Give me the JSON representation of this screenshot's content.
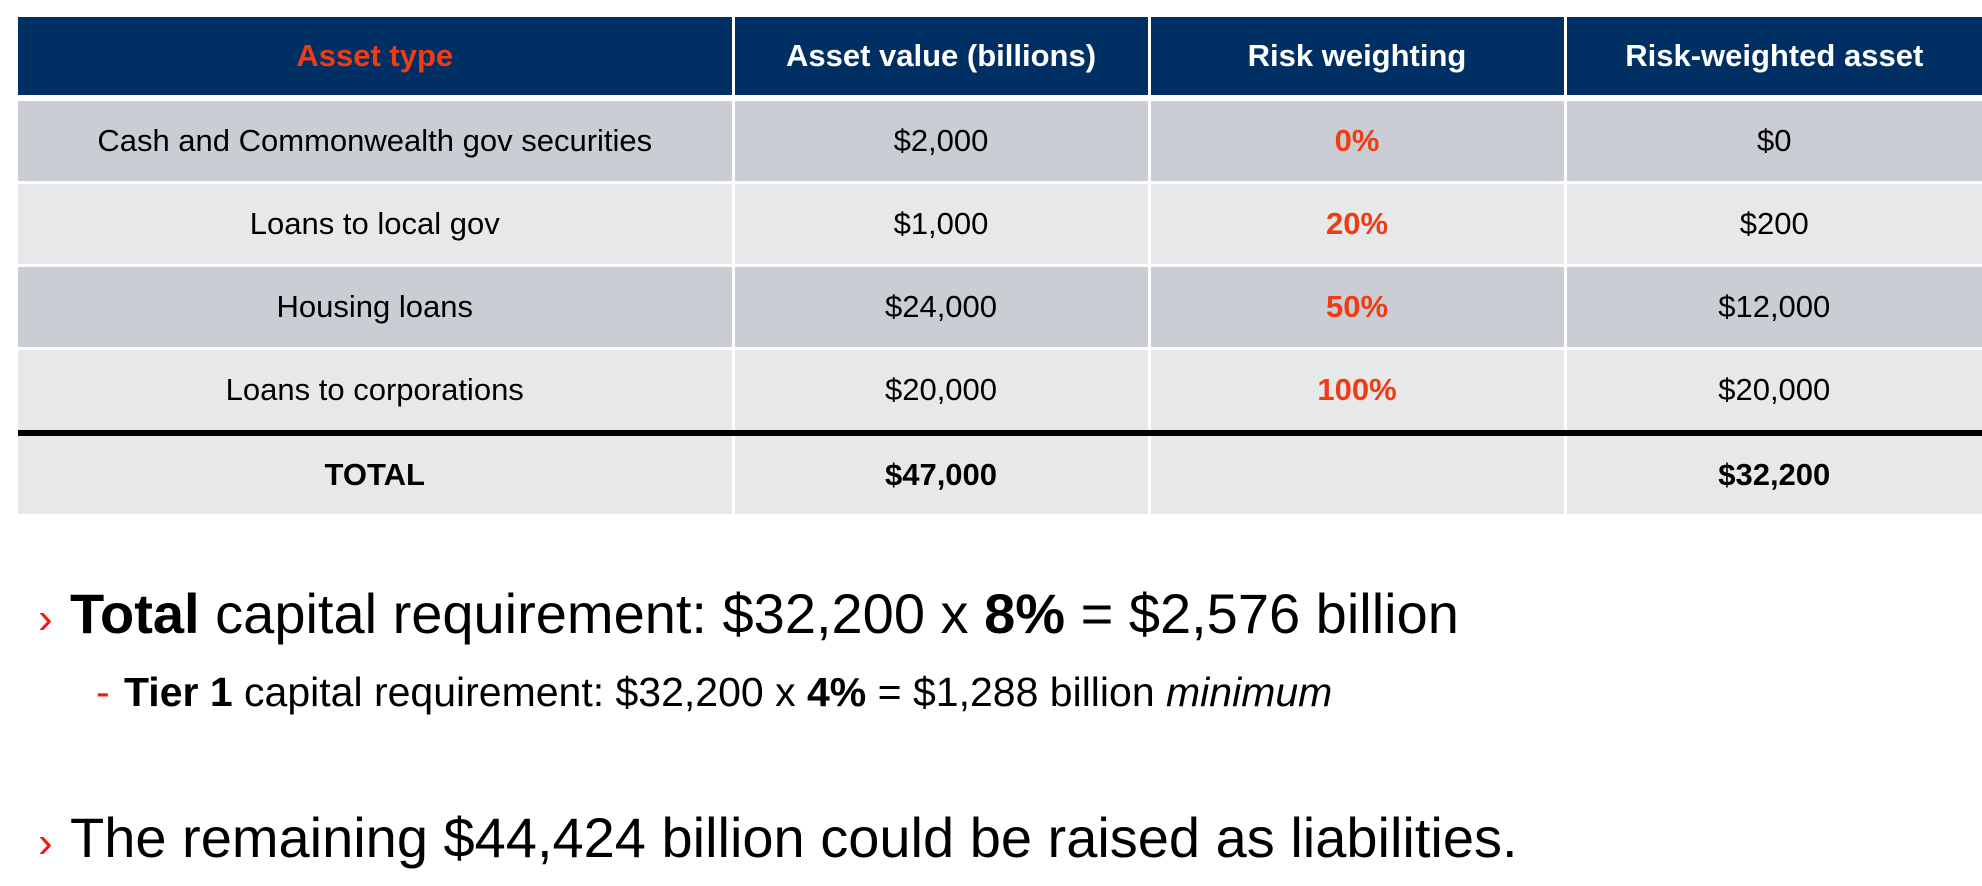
{
  "table": {
    "headers": [
      "Asset type",
      "Asset value (billions)",
      "Risk weighting",
      "Risk-weighted asset"
    ],
    "rows": [
      {
        "asset": "Cash and Commonwealth gov securities",
        "value": "$2,000",
        "weight": "0%",
        "rwa": "$0"
      },
      {
        "asset": "Loans to local gov",
        "value": "$1,000",
        "weight": "20%",
        "rwa": "$200"
      },
      {
        "asset": "Housing loans",
        "value": "$24,000",
        "weight": "50%",
        "rwa": "$12,000"
      },
      {
        "asset": "Loans to corporations",
        "value": "$20,000",
        "weight": "100%",
        "rwa": "$20,000"
      }
    ],
    "total": {
      "label": "TOTAL",
      "value": "$47,000",
      "weight": "",
      "rwa": "$32,200"
    }
  },
  "bullets": {
    "marker": "›",
    "sub_marker": "-",
    "total": {
      "bold_lead": "Total",
      "text1": " capital requirement: $32,200 x ",
      "bold_pct": "8%",
      "text2": " = $2,576 billion"
    },
    "tier1": {
      "bold_lead": "Tier 1",
      "text1": " capital requirement: $32,200 x ",
      "bold_pct": "4%",
      "text2": " = $1,288 billion ",
      "italic_tail": "minimum"
    },
    "remaining": {
      "text": "The remaining $44,424 billion could be raised as liabilities."
    }
  }
}
